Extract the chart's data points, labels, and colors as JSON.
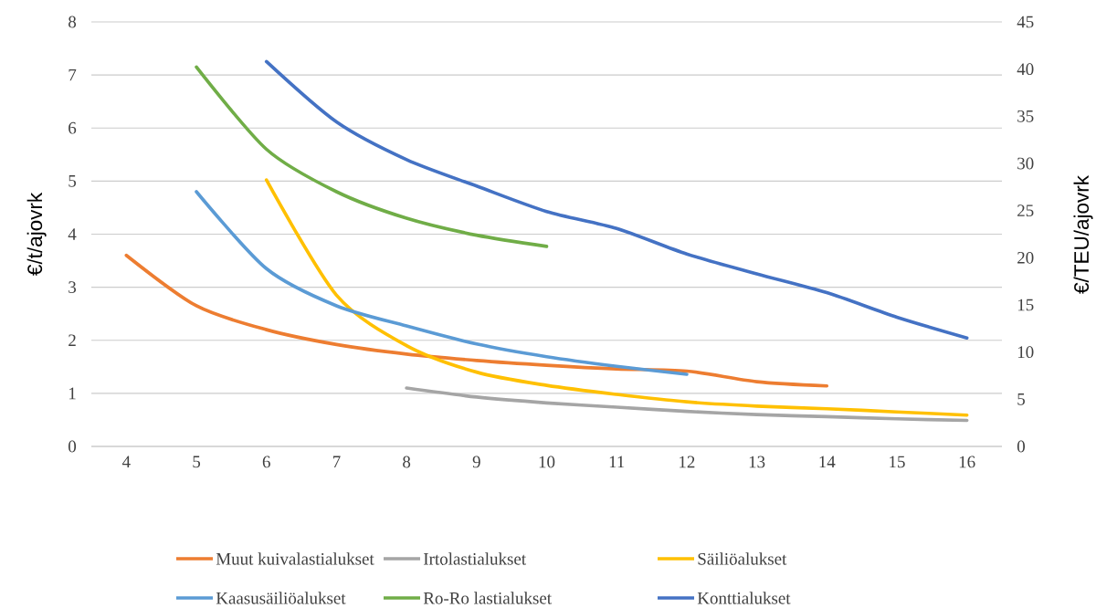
{
  "chart_data": {
    "type": "line",
    "xlabel": null,
    "ylabel": "€/t/ajovrk",
    "y2label": "€/TEU/ajovrk",
    "categories": [
      "4",
      "5",
      "6",
      "7",
      "8",
      "9",
      "10",
      "11",
      "12",
      "13",
      "14",
      "15",
      "16"
    ],
    "ylim": [
      0,
      8
    ],
    "yticks": [
      0,
      1,
      2,
      3,
      4,
      5,
      6,
      7,
      8
    ],
    "y2lim": [
      0,
      45
    ],
    "y2ticks": [
      0,
      5,
      10,
      15,
      20,
      25,
      30,
      35,
      40,
      45
    ],
    "grid": "y",
    "legend": "bottom",
    "marker": "none",
    "line_style": "solid",
    "series": [
      {
        "name": "Muut kuivalastialukset",
        "color": "#ed7d31",
        "values": [
          3.6,
          2.65,
          2.2,
          1.92,
          1.74,
          1.62,
          1.53,
          1.46,
          1.42,
          1.22,
          1.14,
          null,
          null
        ]
      },
      {
        "name": "Irtolastialukset",
        "color": "#a5a5a5",
        "values": [
          null,
          null,
          null,
          null,
          1.1,
          0.93,
          0.82,
          0.74,
          0.66,
          0.6,
          0.56,
          0.52,
          0.49
        ]
      },
      {
        "name": "Säiliöalukset",
        "color": "#ffc000",
        "values": [
          null,
          null,
          5.02,
          2.85,
          1.9,
          1.4,
          1.15,
          0.98,
          0.84,
          0.76,
          0.71,
          0.65,
          0.59
        ]
      },
      {
        "name": "Kaasusäiliöalukset",
        "color": "#5b9bd5",
        "values": [
          null,
          4.8,
          3.35,
          2.65,
          2.27,
          1.93,
          1.69,
          1.51,
          1.36,
          null,
          null,
          null,
          null
        ]
      },
      {
        "name": "Ro-Ro lastialukset",
        "color": "#70ad47",
        "values": [
          null,
          7.15,
          5.6,
          4.8,
          4.3,
          3.98,
          3.77,
          null,
          null,
          null,
          null,
          null,
          null
        ]
      },
      {
        "name": "Konttialukset",
        "color": "#4472c4",
        "axis": "y2",
        "values": [
          null,
          null,
          40.8,
          34.4,
          30.4,
          27.6,
          24.9,
          23.1,
          20.4,
          18.3,
          16.3,
          13.7,
          11.5
        ]
      }
    ]
  }
}
